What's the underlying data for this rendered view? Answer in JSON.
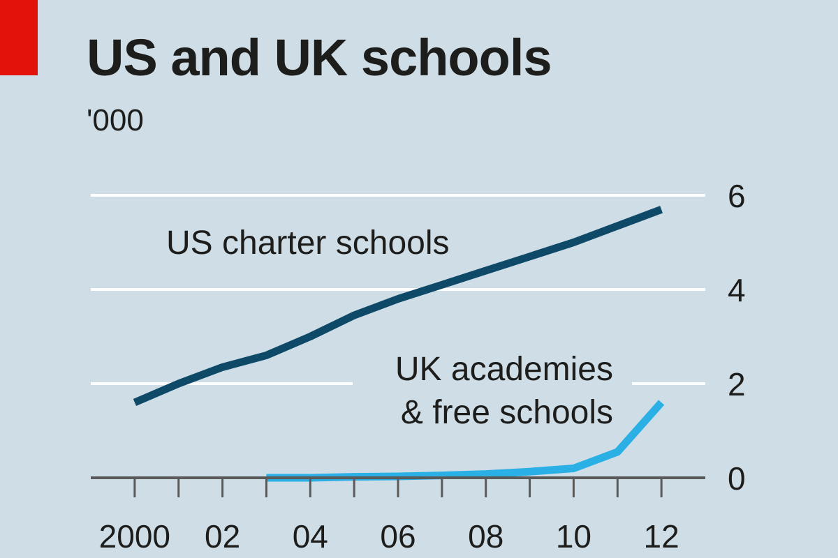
{
  "chart_data": {
    "type": "line",
    "title": "US and UK schools",
    "unit": "'000",
    "xlim": [
      1999,
      2013
    ],
    "ylim": [
      0,
      6
    ],
    "x_ticks": [
      {
        "value": 2000,
        "label": "2000"
      },
      {
        "value": 2002,
        "label": "02"
      },
      {
        "value": 2004,
        "label": "04"
      },
      {
        "value": 2006,
        "label": "06"
      },
      {
        "value": 2008,
        "label": "08"
      },
      {
        "value": 2010,
        "label": "10"
      },
      {
        "value": 2012,
        "label": "12"
      }
    ],
    "minor_x_ticks": [
      2001,
      2003,
      2005,
      2007,
      2009,
      2011
    ],
    "y_ticks": [
      {
        "value": 0,
        "label": "0"
      },
      {
        "value": 2,
        "label": "2"
      },
      {
        "value": 4,
        "label": "4"
      },
      {
        "value": 6,
        "label": "6"
      }
    ],
    "grid": true,
    "series": [
      {
        "name": "US charter schools",
        "color": "#0e4a68",
        "x": [
          2000,
          2001,
          2002,
          2003,
          2004,
          2005,
          2006,
          2007,
          2008,
          2009,
          2010,
          2011,
          2012
        ],
        "values": [
          1.6,
          2.0,
          2.35,
          2.6,
          3.0,
          3.45,
          3.8,
          4.1,
          4.4,
          4.7,
          5.0,
          5.35,
          5.7
        ]
      },
      {
        "name": "UK academies & free schools",
        "name_lines": [
          "UK academies",
          "& free schools"
        ],
        "color": "#2bb0e6",
        "x": [
          2003,
          2004,
          2005,
          2006,
          2007,
          2008,
          2009,
          2010,
          2011,
          2012
        ],
        "values": [
          0.0,
          0.0,
          0.02,
          0.03,
          0.05,
          0.08,
          0.13,
          0.2,
          0.55,
          1.6
        ]
      }
    ]
  }
}
